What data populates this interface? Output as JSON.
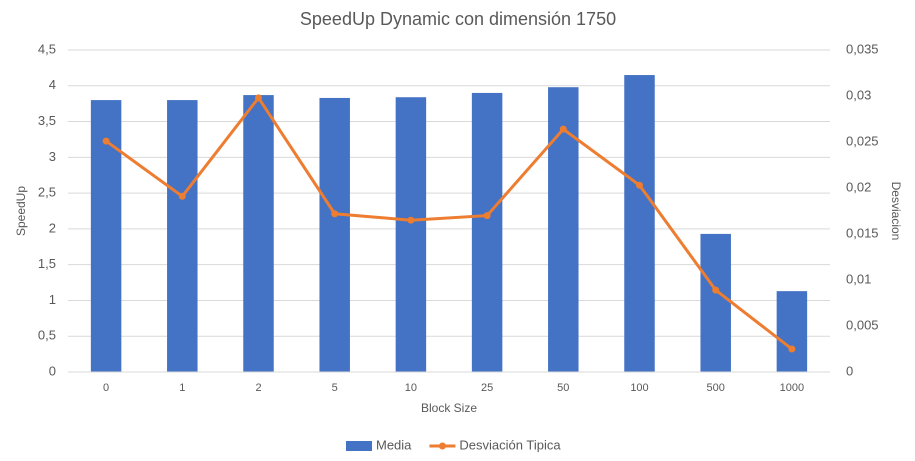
{
  "chart_data": {
    "type": "bar_line",
    "title": "SpeedUp Dynamic con dimensión 1750",
    "x_label": "Block Size",
    "y_label": "SpeedUp",
    "y2_label": "Desviacion",
    "categories": [
      "0",
      "1",
      "2",
      "5",
      "10",
      "25",
      "50",
      "100",
      "500",
      "1000"
    ],
    "series": [
      {
        "name": "Media",
        "type": "bar",
        "color": "#4472c4",
        "values": [
          3.8,
          3.8,
          3.87,
          3.83,
          3.84,
          3.9,
          3.98,
          4.15,
          1.93,
          1.13
        ]
      },
      {
        "name": "Desviación Tipica",
        "type": "line",
        "axis": "y2",
        "color": "#ed7d31",
        "values": [
          0.0251,
          0.0191,
          0.0298,
          0.0172,
          0.0165,
          0.017,
          0.0264,
          0.0203,
          0.0089,
          0.0025
        ]
      }
    ],
    "ylim": [
      0,
      4.5
    ],
    "yticks": [
      0,
      {
        "value": 0.5,
        "label": "0,5"
      },
      1,
      {
        "value": 1.5,
        "label": "1,5"
      },
      2,
      {
        "value": 2.5,
        "label": "2,5"
      },
      3,
      {
        "value": 3.5,
        "label": "3,5"
      },
      4,
      {
        "value": 4.5,
        "label": "4,5"
      }
    ],
    "y2lim": [
      0,
      0.035
    ],
    "y2ticks": [
      0,
      {
        "value": 0.005,
        "label": "0,005"
      },
      {
        "value": 0.01,
        "label": "0,01"
      },
      {
        "value": 0.015,
        "label": "0,015"
      },
      {
        "value": 0.02,
        "label": "0,02"
      },
      {
        "value": 0.025,
        "label": "0,025"
      },
      {
        "value": 0.03,
        "label": "0,03"
      },
      {
        "value": 0.035,
        "label": "0,035"
      }
    ],
    "grid": true,
    "legend": "bottom"
  }
}
